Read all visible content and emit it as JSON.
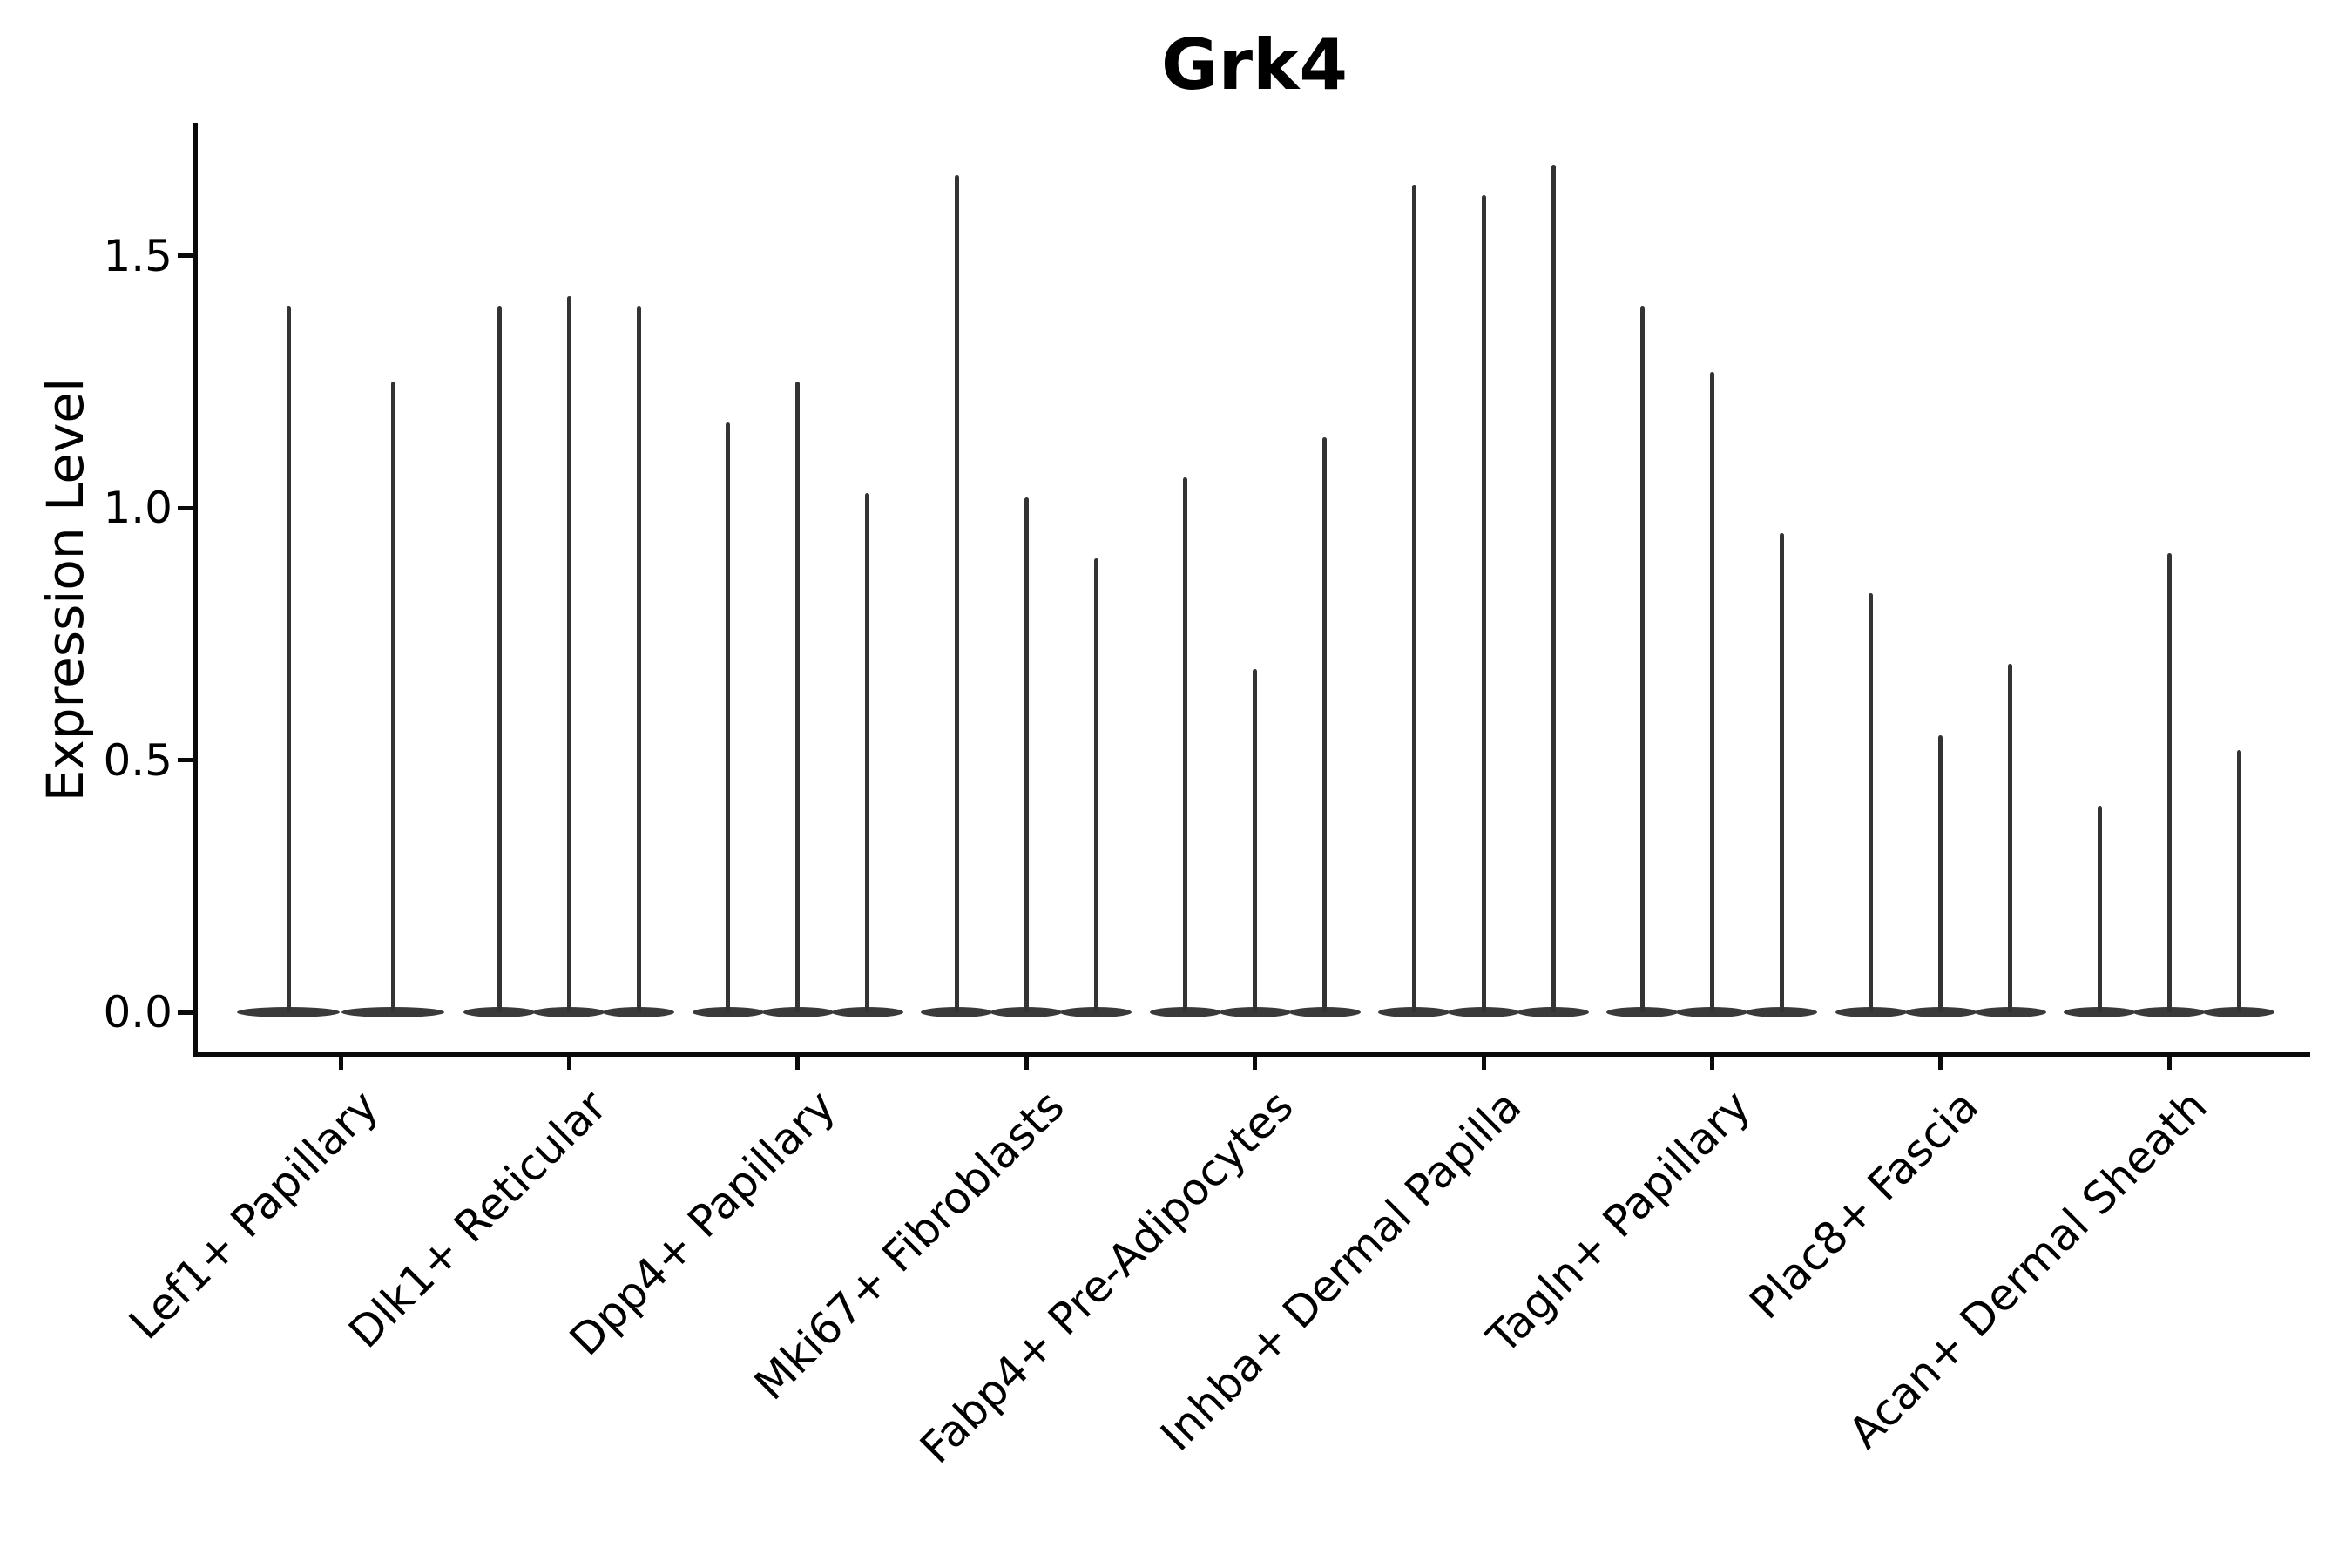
{
  "title": "Grk4",
  "y_axis": {
    "label": "Expression Level",
    "tick_labels": [
      "0.0",
      "0.5",
      "1.0",
      "1.5"
    ]
  },
  "chart_data": {
    "type": "violin",
    "title": "Grk4",
    "xlabel": "",
    "ylabel": "Expression Level",
    "categories": [
      "Lef1+ Papillary",
      "Dlk1+ Reticular",
      "Dpp4+ Papillary",
      "Mki67+ Fibroblasts",
      "Fabp4+ Pre-Adipocytes",
      "Inhba+ Dermal Papilla",
      "Tagln+ Papillary",
      "Plac8+ Fascia",
      "Acan+ Dermal Sheath"
    ],
    "values": [
      [
        1.4,
        1.25
      ],
      [
        1.4,
        1.42,
        1.4
      ],
      [
        1.17,
        1.25,
        1.03
      ],
      [
        1.66,
        1.02,
        0.9
      ],
      [
        1.06,
        0.68,
        1.14
      ],
      [
        1.64,
        1.62,
        1.68
      ],
      [
        1.4,
        1.27,
        0.95
      ],
      [
        0.83,
        0.55,
        0.69
      ],
      [
        0.41,
        0.91,
        0.52
      ]
    ],
    "yticks": [
      0.0,
      0.5,
      1.0,
      1.5
    ],
    "ylim": [
      -0.08,
      1.77
    ],
    "legend": "none",
    "grid": false,
    "style_note": "Each violin is a thin vertical spike rising from 0 to its listed maximum, with the bulk of the density flattened as a pancake at expression level 0; values are violins left-to-right within each category.",
    "colors": {
      "violin": "#333333",
      "violin_base": "#3a3a3a",
      "spine": "#0a0a0a",
      "text": "#000000"
    }
  }
}
